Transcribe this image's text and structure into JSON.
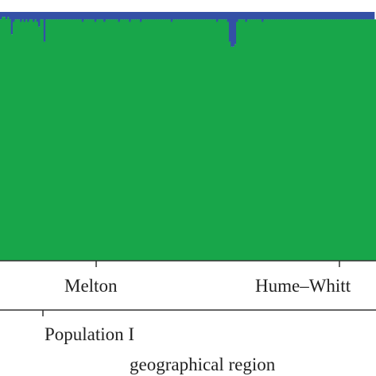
{
  "chart_data": {
    "type": "bar",
    "stacked": true,
    "ylim": [
      0,
      1
    ],
    "categories_note_text": "",
    "category_labels": [
      "Melton",
      "Hume–Whitt"
    ],
    "group_labels": [
      "Population I"
    ],
    "xlabel": "geographical region",
    "colors": {
      "cluster_green": "#18a64a",
      "cluster_blue": "#3450a6",
      "axis": "#333333",
      "text": "#222222"
    },
    "series": [
      {
        "values": [
          0.97,
          0.98,
          0.98,
          0.97,
          0.98,
          0.97,
          0.91,
          0.96,
          0.97,
          0.97,
          0.97,
          0.96,
          0.97,
          0.96,
          0.97,
          0.96,
          0.97,
          0.97,
          0.96,
          0.97,
          0.96,
          0.94,
          0.97,
          0.97,
          0.88,
          0.97,
          0.97,
          0.97,
          0.97,
          0.97,
          0.97,
          0.97,
          0.97,
          0.97,
          0.97,
          0.97,
          0.97,
          0.97,
          0.97,
          0.97,
          0.97,
          0.97,
          0.97,
          0.97,
          0.97,
          0.96,
          0.97,
          0.97,
          0.97,
          0.97,
          0.97,
          0.97,
          0.96,
          0.97,
          0.97,
          0.97,
          0.97,
          0.96,
          0.97,
          0.97,
          0.97,
          0.97,
          0.97,
          0.97,
          0.97,
          0.96,
          0.97,
          0.97,
          0.97,
          0.97,
          0.97,
          0.96,
          0.97,
          0.97,
          0.97,
          0.97,
          0.97,
          0.96,
          0.97,
          0.97,
          0.97,
          0.97,
          0.97,
          0.97,
          0.97,
          0.97,
          0.97,
          0.97,
          0.97,
          0.97,
          0.97,
          0.97,
          0.97,
          0.97,
          0.96,
          0.97,
          0.97,
          0.97,
          0.97,
          0.97,
          0.97,
          0.97,
          0.97,
          0.97,
          0.97,
          0.97,
          0.97,
          0.97,
          0.97,
          0.97,
          0.97,
          0.97,
          0.97,
          0.97,
          0.97,
          0.97,
          0.97,
          0.97,
          0.97,
          0.96,
          0.97,
          0.97,
          0.97,
          0.97,
          0.97,
          0.96,
          0.88,
          0.86,
          0.86,
          0.87,
          0.96,
          0.97,
          0.97,
          0.97,
          0.97,
          0.96,
          0.97,
          0.97,
          0.97,
          0.97,
          0.97,
          0.97,
          0.97,
          0.97,
          0.96,
          0.97,
          0.97,
          0.97,
          0.97,
          0.97,
          0.97,
          0.97,
          0.97,
          0.97,
          0.97,
          0.97,
          0.97,
          0.97,
          0.97,
          0.97,
          0.97,
          0.97,
          0.97,
          0.97,
          0.97,
          0.97,
          0.97,
          0.97,
          0.97,
          0.97,
          0.97,
          0.97,
          0.97,
          0.97,
          0.97,
          0.97,
          0.97,
          0.97,
          0.97,
          0.97,
          0.97,
          0.97,
          0.97,
          0.97,
          0.97,
          0.97,
          0.97,
          0.97,
          0.97,
          0.97,
          0.97,
          0.97,
          0.97,
          0.97,
          0.97,
          0.97,
          0.97,
          0.97,
          0.97,
          0.97,
          0.97,
          0.97,
          0.97,
          0.97,
          0.97,
          0.97,
          0.97
        ]
      },
      {
        "values": [
          0.03,
          0.02,
          0.02,
          0.03,
          0.02,
          0.03,
          0.09,
          0.04,
          0.03,
          0.03,
          0.03,
          0.04,
          0.03,
          0.04,
          0.03,
          0.04,
          0.03,
          0.03,
          0.04,
          0.03,
          0.04,
          0.06,
          0.03,
          0.03,
          0.12,
          0.03,
          0.03,
          0.03,
          0.03,
          0.03,
          0.03,
          0.03,
          0.03,
          0.03,
          0.03,
          0.03,
          0.03,
          0.03,
          0.03,
          0.03,
          0.03,
          0.03,
          0.03,
          0.03,
          0.03,
          0.04,
          0.03,
          0.03,
          0.03,
          0.03,
          0.03,
          0.03,
          0.04,
          0.03,
          0.03,
          0.03,
          0.03,
          0.04,
          0.03,
          0.03,
          0.03,
          0.03,
          0.03,
          0.03,
          0.03,
          0.04,
          0.03,
          0.03,
          0.03,
          0.03,
          0.03,
          0.04,
          0.03,
          0.03,
          0.03,
          0.03,
          0.03,
          0.04,
          0.03,
          0.03,
          0.03,
          0.03,
          0.03,
          0.03,
          0.03,
          0.03,
          0.03,
          0.03,
          0.03,
          0.03,
          0.03,
          0.03,
          0.03,
          0.03,
          0.04,
          0.03,
          0.03,
          0.03,
          0.03,
          0.03,
          0.03,
          0.03,
          0.03,
          0.03,
          0.03,
          0.03,
          0.03,
          0.03,
          0.03,
          0.03,
          0.03,
          0.03,
          0.03,
          0.03,
          0.03,
          0.03,
          0.03,
          0.03,
          0.03,
          0.04,
          0.03,
          0.03,
          0.03,
          0.03,
          0.03,
          0.04,
          0.12,
          0.14,
          0.14,
          0.13,
          0.04,
          0.03,
          0.03,
          0.03,
          0.03,
          0.04,
          0.03,
          0.03,
          0.03,
          0.03,
          0.03,
          0.03,
          0.03,
          0.03,
          0.04,
          0.03,
          0.03,
          0.03,
          0.03,
          0.03,
          0.03,
          0.03,
          0.03,
          0.03,
          0.03,
          0.03,
          0.03,
          0.03,
          0.03,
          0.03,
          0.03,
          0.03,
          0.03,
          0.03,
          0.03,
          0.03,
          0.03,
          0.03,
          0.03,
          0.03,
          0.03,
          0.03,
          0.03,
          0.03,
          0.03,
          0.03,
          0.03,
          0.03,
          0.03,
          0.03,
          0.03,
          0.03,
          0.03,
          0.03,
          0.03,
          0.03,
          0.03,
          0.03,
          0.03,
          0.03,
          0.03,
          0.03,
          0.03,
          0.03,
          0.03,
          0.03,
          0.03,
          0.03,
          0.03,
          0.03,
          0.03,
          0.03,
          0.03,
          0.03,
          0.03,
          0.03
        ]
      }
    ]
  }
}
